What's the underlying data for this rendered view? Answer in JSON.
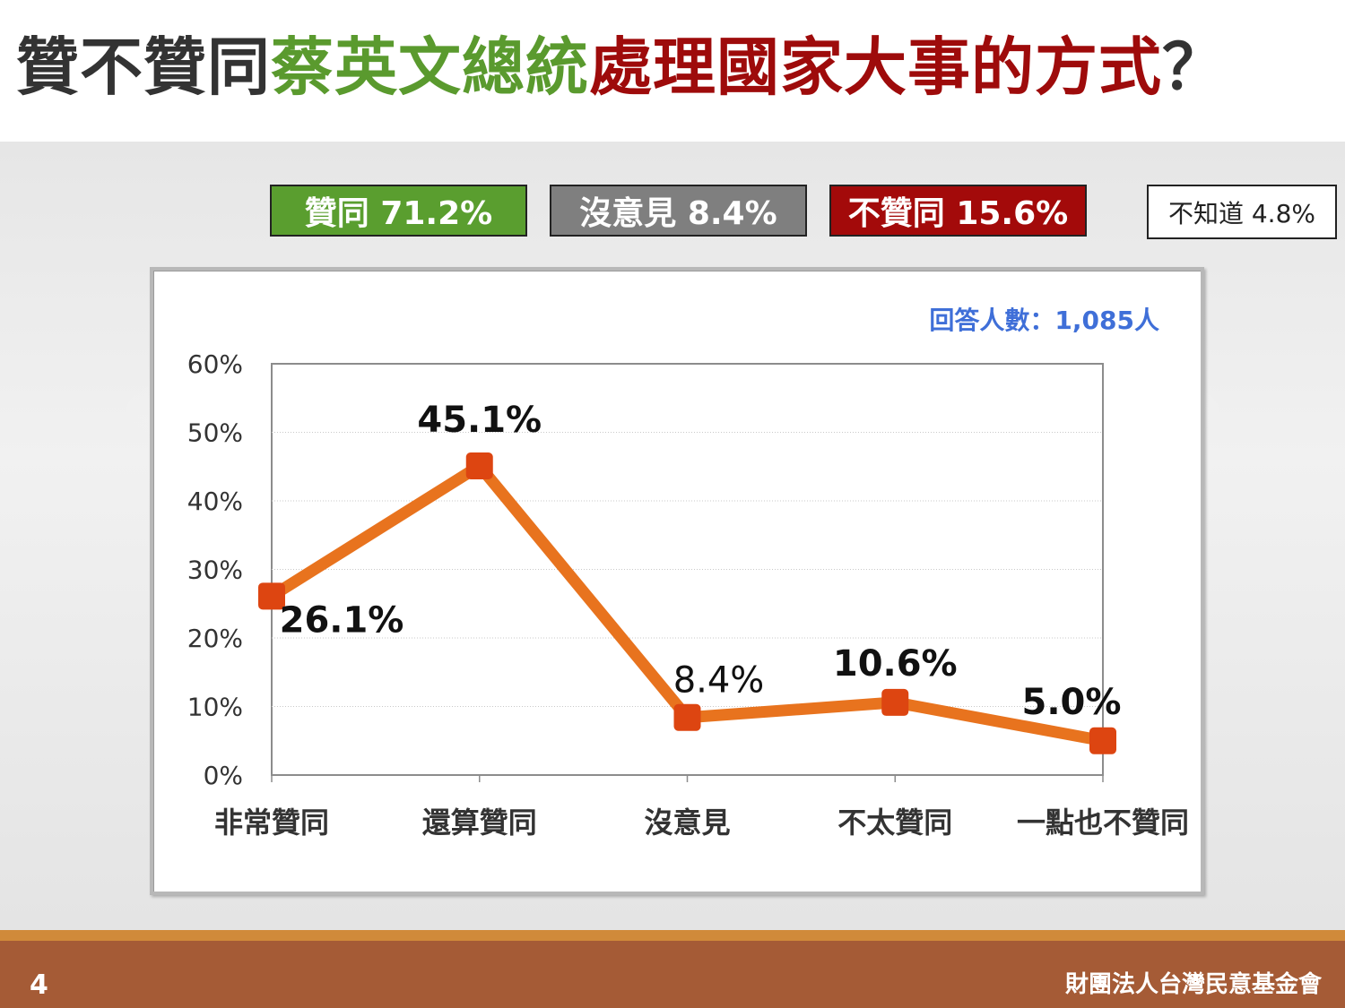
{
  "title": {
    "part1": "贊不贊同",
    "part2": "蔡英文總統",
    "part3": "處理國家大事的方式",
    "part4": "？"
  },
  "summary": {
    "approve": "贊同 71.2%",
    "neutral": "沒意見 8.4%",
    "disapprove": "不贊同 15.6%",
    "unknown": "不知道 4.8%"
  },
  "colors": {
    "approve": "#5a9e2f",
    "neutral": "#7f7f7f",
    "disapprove": "#a30a0a",
    "line": "#e8731e",
    "marker": "#dd4511",
    "respondents": "#3f6fd8",
    "footer": "#a55b36"
  },
  "chart_data": {
    "type": "line",
    "categories": [
      "非常贊同",
      "還算贊同",
      "沒意見",
      "不太贊同",
      "一點也不贊同"
    ],
    "values": [
      26.1,
      45.1,
      8.4,
      10.6,
      5.0
    ],
    "data_labels": [
      "26.1%",
      "45.1%",
      "8.4%",
      "10.6%",
      "5.0%"
    ],
    "yticks": [
      "0%",
      "10%",
      "20%",
      "30%",
      "40%",
      "50%",
      "60%"
    ],
    "ylim": [
      0,
      60
    ],
    "grid": true,
    "annotation": "回答人數：1,085人",
    "title": "",
    "xlabel": "",
    "ylabel": ""
  },
  "footer": {
    "page": "4",
    "org": "財團法人台灣民意基金會"
  }
}
